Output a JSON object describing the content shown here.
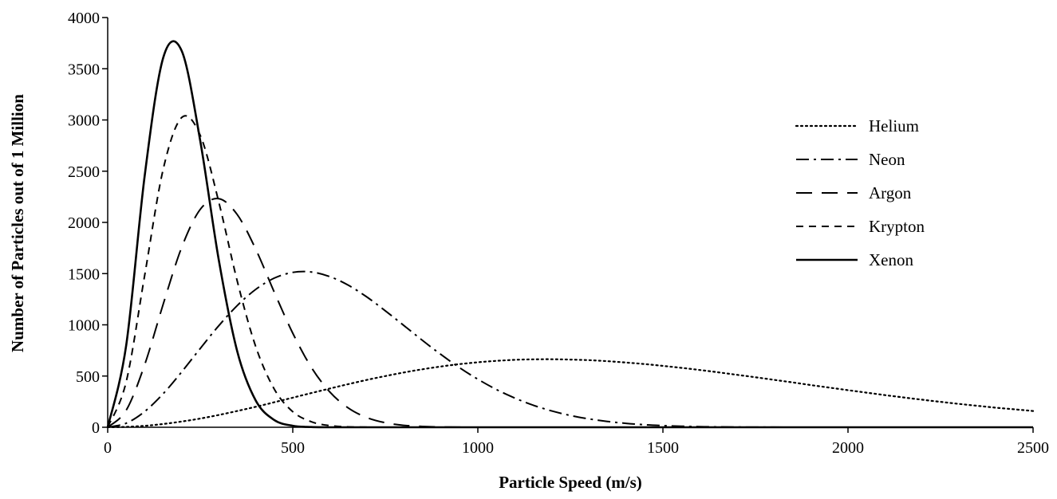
{
  "chart_data": {
    "type": "line",
    "title": "",
    "xlabel": "Particle Speed (m/s)",
    "ylabel": "Number of Particles out of 1 Million",
    "xlim": [
      0,
      2500
    ],
    "ylim": [
      0,
      4000
    ],
    "xticks": [
      "0",
      "500",
      "1000",
      "1500",
      "2000",
      "2500"
    ],
    "yticks": [
      "0",
      "500",
      "1000",
      "1500",
      "2000",
      "2500",
      "3000",
      "3500",
      "4000"
    ],
    "grid": false,
    "legend_position": "right",
    "x": [
      0,
      50,
      100,
      150,
      200,
      250,
      300,
      350,
      400,
      450,
      500,
      550,
      600,
      650,
      700,
      750,
      800,
      850,
      900,
      950,
      1000,
      1050,
      1100,
      1150,
      1200,
      1250,
      1300,
      1350,
      1400,
      1450,
      1500,
      1550,
      1600,
      1650,
      1700,
      1750,
      1800,
      1850,
      1900,
      1950,
      2000,
      2050,
      2100,
      2150,
      2200,
      2250,
      2300,
      2350,
      2400,
      2450,
      2500
    ],
    "series": [
      {
        "name": "Helium",
        "style": "dotted",
        "values": [
          0,
          4,
          14,
          32,
          56,
          85,
          120,
          159,
          200,
          244,
          289,
          334,
          378,
          421,
          462,
          500,
          535,
          566,
          593,
          616,
          634,
          648,
          658,
          663,
          664,
          661,
          655,
          645,
          632,
          617,
          599,
          580,
          559,
          536,
          512,
          488,
          463,
          438,
          412,
          387,
          362,
          338,
          314,
          291,
          269,
          248,
          228,
          209,
          191,
          175,
          159
        ]
      },
      {
        "name": "Neon",
        "style": "dashdot",
        "values": [
          0,
          40,
          154,
          328,
          541,
          769,
          991,
          1188,
          1346,
          1456,
          1512,
          1516,
          1471,
          1387,
          1272,
          1137,
          994,
          849,
          711,
          583,
          469,
          369,
          285,
          215,
          159,
          115,
          82,
          57,
          38,
          25,
          16,
          10,
          6,
          4,
          2,
          1,
          1,
          0,
          0,
          0,
          0,
          0,
          0,
          0,
          0,
          0,
          0,
          0,
          0,
          0,
          0
        ]
      },
      {
        "name": "Argon",
        "style": "longdash",
        "values": [
          0,
          166,
          612,
          1202,
          1757,
          2127,
          2232,
          2076,
          1738,
          1319,
          918,
          586,
          345,
          188,
          95,
          44,
          19,
          8,
          3,
          1,
          0,
          0,
          0,
          0,
          0,
          0,
          0,
          0,
          0,
          0,
          0,
          0,
          0,
          0,
          0,
          0,
          0,
          0,
          0,
          0,
          0,
          0,
          0,
          0,
          0,
          0,
          0,
          0,
          0,
          0,
          0
        ]
      },
      {
        "name": "Krypton",
        "style": "shortdash",
        "values": [
          0,
          444,
          1485,
          2520,
          3024,
          2850,
          2201,
          1427,
          787,
          373,
          152,
          54,
          16,
          4,
          1,
          0,
          0,
          0,
          0,
          0,
          0,
          0,
          0,
          0,
          0,
          0,
          0,
          0,
          0,
          0,
          0,
          0,
          0,
          0,
          0,
          0,
          0,
          0,
          0,
          0,
          0,
          0,
          0,
          0,
          0,
          0,
          0,
          0,
          0,
          0,
          0
        ]
      },
      {
        "name": "Xenon",
        "style": "solid",
        "values": [
          0,
          800,
          2457,
          3608,
          3674,
          2797,
          1636,
          741,
          261,
          71,
          15,
          2,
          0,
          0,
          0,
          0,
          0,
          0,
          0,
          0,
          0,
          0,
          0,
          0,
          0,
          0,
          0,
          0,
          0,
          0,
          0,
          0,
          0,
          0,
          0,
          0,
          0,
          0,
          0,
          0,
          0,
          0,
          0,
          0,
          0,
          0,
          0,
          0,
          0,
          0,
          0
        ]
      }
    ]
  }
}
